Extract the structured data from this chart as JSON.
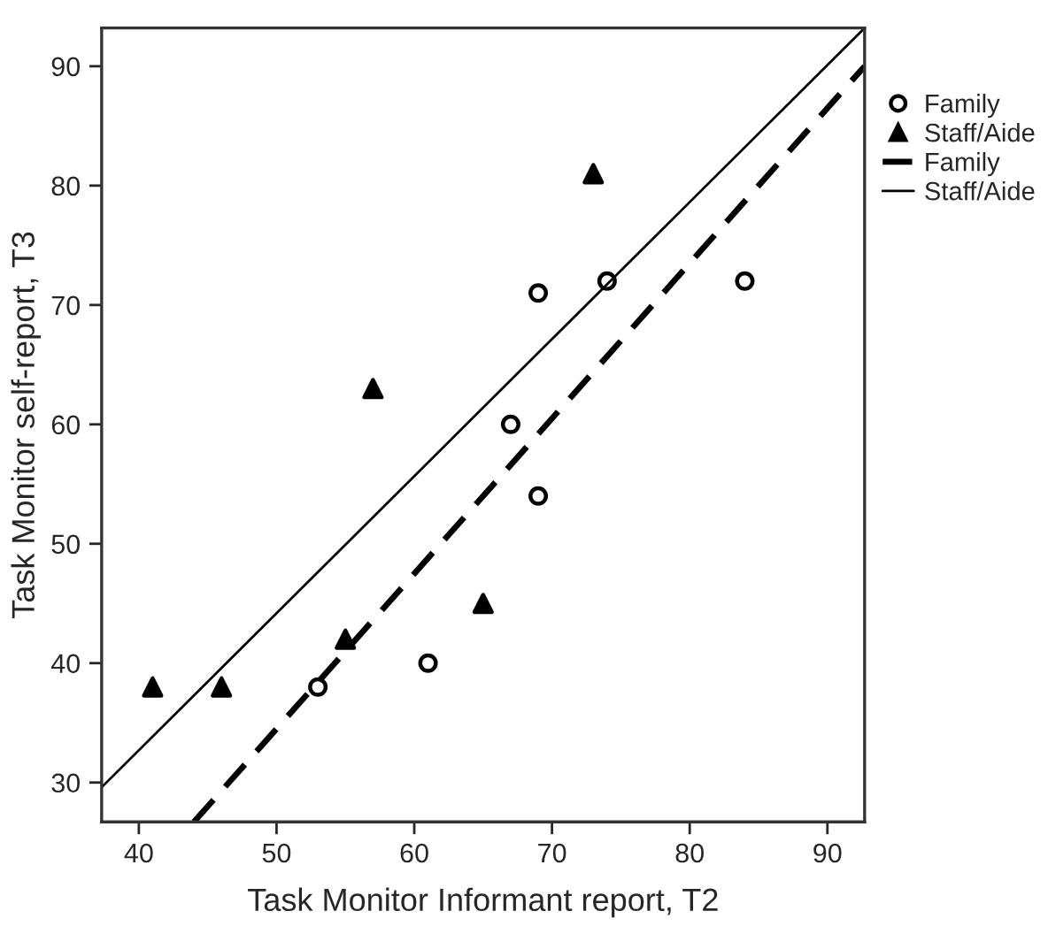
{
  "chart_data": {
    "type": "scatter",
    "xlabel": "Task Monitor Informant report, T2",
    "ylabel": "Task Monitor self-report, T3",
    "xlim": [
      37.3,
      92.7
    ],
    "ylim": [
      26.7,
      93.2
    ],
    "xticks": [
      40,
      50,
      60,
      70,
      80,
      90
    ],
    "yticks": [
      30,
      40,
      50,
      60,
      70,
      80,
      90
    ],
    "grid": false,
    "legend": "right",
    "series": [
      {
        "name": "Family",
        "marker": "circle",
        "color": "#000000",
        "x": [
          53,
          61,
          67,
          69,
          69,
          74,
          84
        ],
        "values": [
          38,
          40,
          60,
          71,
          54,
          72,
          72
        ]
      },
      {
        "name": "Staff/Aide",
        "marker": "triangle",
        "color": "#000000",
        "x": [
          41,
          46,
          55,
          57,
          65,
          73
        ],
        "values": [
          38,
          38,
          42,
          63,
          45,
          81
        ]
      },
      {
        "name": "Family",
        "type": "line",
        "line_style": "dashed",
        "color": "#000000",
        "x": [
          44,
          92.7
        ],
        "values": [
          26.7,
          90
        ]
      },
      {
        "name": "Staff/Aide",
        "type": "line",
        "line_style": "solid",
        "color": "#000000",
        "x": [
          37.3,
          92.7
        ],
        "values": [
          29.6,
          93.2
        ]
      }
    ]
  }
}
